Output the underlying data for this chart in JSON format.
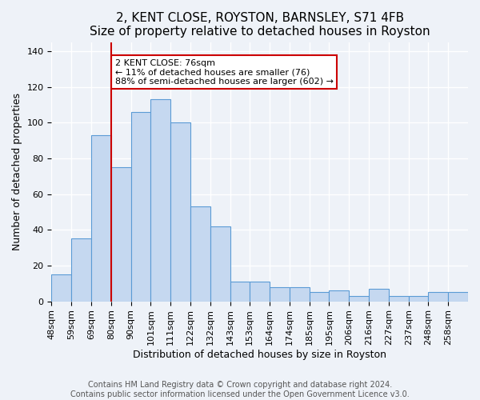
{
  "title": "2, KENT CLOSE, ROYSTON, BARNSLEY, S71 4FB",
  "subtitle": "Size of property relative to detached houses in Royston",
  "xlabel": "Distribution of detached houses by size in Royston",
  "ylabel": "Number of detached properties",
  "categories": [
    "48sqm",
    "59sqm",
    "69sqm",
    "80sqm",
    "90sqm",
    "101sqm",
    "111sqm",
    "122sqm",
    "132sqm",
    "143sqm",
    "153sqm",
    "164sqm",
    "174sqm",
    "185sqm",
    "195sqm",
    "206sqm",
    "216sqm",
    "227sqm",
    "237sqm",
    "248sqm",
    "258sqm"
  ],
  "values": [
    15,
    35,
    93,
    75,
    106,
    113,
    100,
    53,
    42,
    11,
    11,
    8,
    8,
    5,
    6,
    3,
    7,
    3,
    3,
    5,
    5
  ],
  "bar_color": "#c5d8f0",
  "bar_edge_color": "#5b9bd5",
  "ylim": [
    0,
    145
  ],
  "yticks": [
    0,
    20,
    40,
    60,
    80,
    100,
    120,
    140
  ],
  "vline_x": 3,
  "vline_color": "#cc0000",
  "annotation_text": "2 KENT CLOSE: 76sqm\n← 11% of detached houses are smaller (76)\n88% of semi-detached houses are larger (602) →",
  "annotation_box_edge_color": "#cc0000",
  "annotation_fontsize": 8,
  "title_fontsize": 11,
  "subtitle_fontsize": 10,
  "xlabel_fontsize": 9,
  "ylabel_fontsize": 9,
  "tick_fontsize": 8,
  "footer_text": "Contains HM Land Registry data © Crown copyright and database right 2024.\nContains public sector information licensed under the Open Government Licence v3.0.",
  "footer_fontsize": 7,
  "background_color": "#eef2f8",
  "plot_background_color": "#eef2f8",
  "grid_color": "#ffffff",
  "bin_width": 1.0
}
